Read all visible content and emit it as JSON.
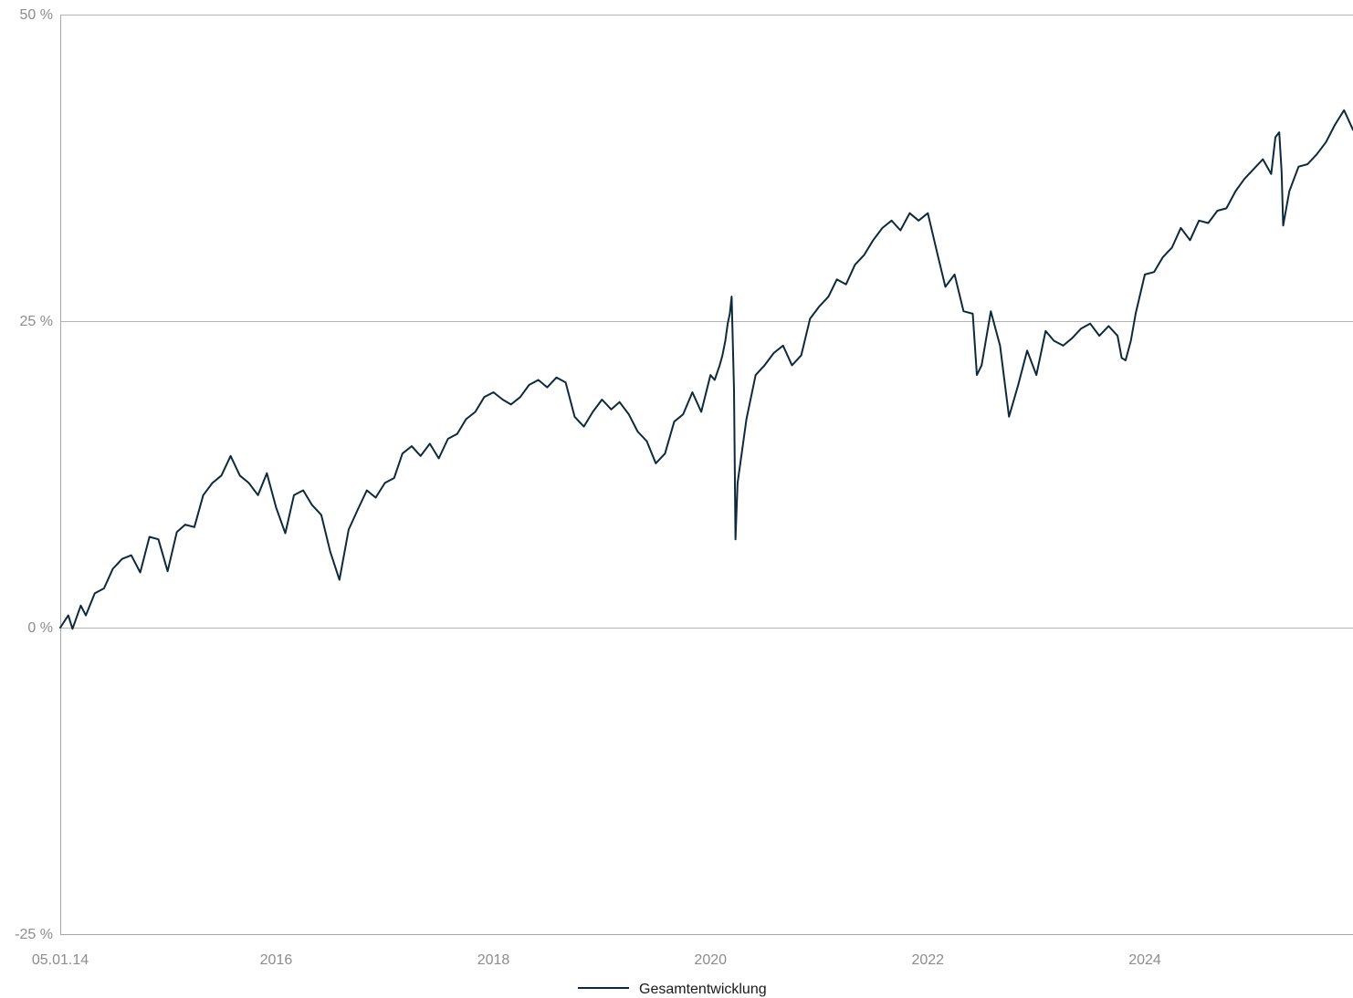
{
  "chart_data": {
    "type": "line",
    "title": "",
    "xlabel": "",
    "ylabel": "",
    "ylim": [
      -25,
      50
    ],
    "xlim": [
      "2014-01-05",
      "2025-12-01"
    ],
    "y_ticks": [
      {
        "value": 50,
        "label": "50 %"
      },
      {
        "value": 25,
        "label": "25 %"
      },
      {
        "value": 0,
        "label": "0 %"
      },
      {
        "value": -25,
        "label": "-25 %"
      }
    ],
    "x_ticks": [
      {
        "value": "2014-01-05",
        "label": "05.01.14"
      },
      {
        "value": "2016-01-01",
        "label": "2016"
      },
      {
        "value": "2018-01-01",
        "label": "2018"
      },
      {
        "value": "2020-01-01",
        "label": "2020"
      },
      {
        "value": "2022-01-01",
        "label": "2022"
      },
      {
        "value": "2024-01-01",
        "label": "2024"
      }
    ],
    "grid": true,
    "legend": {
      "position": "bottom-center"
    },
    "series": [
      {
        "name": "Gesamtentwicklung",
        "color": "#0d2a3c",
        "points": [
          [
            "2014-01-05",
            0.0
          ],
          [
            "2014-02-01",
            1.0
          ],
          [
            "2014-02-15",
            -0.1
          ],
          [
            "2014-03-15",
            1.8
          ],
          [
            "2014-04-01",
            1.0
          ],
          [
            "2014-05-01",
            2.8
          ],
          [
            "2014-06-01",
            3.2
          ],
          [
            "2014-07-01",
            4.8
          ],
          [
            "2014-08-01",
            5.6
          ],
          [
            "2014-09-01",
            5.9
          ],
          [
            "2014-10-01",
            4.5
          ],
          [
            "2014-11-01",
            7.4
          ],
          [
            "2014-12-01",
            7.2
          ],
          [
            "2015-01-01",
            4.6
          ],
          [
            "2015-02-01",
            7.8
          ],
          [
            "2015-03-01",
            8.4
          ],
          [
            "2015-04-01",
            8.2
          ],
          [
            "2015-05-01",
            10.8
          ],
          [
            "2015-06-01",
            11.8
          ],
          [
            "2015-07-01",
            12.4
          ],
          [
            "2015-08-01",
            14.0
          ],
          [
            "2015-09-01",
            12.4
          ],
          [
            "2015-10-01",
            11.8
          ],
          [
            "2015-11-01",
            10.8
          ],
          [
            "2015-12-01",
            12.6
          ],
          [
            "2016-01-01",
            9.8
          ],
          [
            "2016-02-01",
            7.7
          ],
          [
            "2016-03-01",
            10.8
          ],
          [
            "2016-04-01",
            11.2
          ],
          [
            "2016-05-01",
            10.0
          ],
          [
            "2016-06-01",
            9.2
          ],
          [
            "2016-07-01",
            6.2
          ],
          [
            "2016-08-01",
            3.9
          ],
          [
            "2016-09-01",
            8.0
          ],
          [
            "2016-10-01",
            9.6
          ],
          [
            "2016-11-01",
            11.2
          ],
          [
            "2016-12-01",
            10.6
          ],
          [
            "2017-01-01",
            11.8
          ],
          [
            "2017-02-01",
            12.2
          ],
          [
            "2017-03-01",
            14.2
          ],
          [
            "2017-04-01",
            14.8
          ],
          [
            "2017-05-01",
            14.0
          ],
          [
            "2017-06-01",
            15.0
          ],
          [
            "2017-07-01",
            13.8
          ],
          [
            "2017-08-01",
            15.4
          ],
          [
            "2017-09-01",
            15.8
          ],
          [
            "2017-10-01",
            17.0
          ],
          [
            "2017-11-01",
            17.6
          ],
          [
            "2017-12-01",
            18.8
          ],
          [
            "2018-01-01",
            19.2
          ],
          [
            "2018-02-01",
            18.6
          ],
          [
            "2018-03-01",
            18.2
          ],
          [
            "2018-04-01",
            18.8
          ],
          [
            "2018-05-01",
            19.8
          ],
          [
            "2018-06-01",
            20.2
          ],
          [
            "2018-07-01",
            19.6
          ],
          [
            "2018-08-01",
            20.4
          ],
          [
            "2018-09-01",
            20.0
          ],
          [
            "2018-10-01",
            17.2
          ],
          [
            "2018-11-01",
            16.4
          ],
          [
            "2018-12-01",
            17.6
          ],
          [
            "2019-01-01",
            18.6
          ],
          [
            "2019-02-01",
            17.8
          ],
          [
            "2019-03-01",
            18.4
          ],
          [
            "2019-04-01",
            17.4
          ],
          [
            "2019-05-01",
            16.0
          ],
          [
            "2019-06-01",
            15.2
          ],
          [
            "2019-07-01",
            13.4
          ],
          [
            "2019-08-01",
            14.2
          ],
          [
            "2019-09-01",
            16.8
          ],
          [
            "2019-10-01",
            17.4
          ],
          [
            "2019-11-01",
            19.2
          ],
          [
            "2019-12-01",
            17.6
          ],
          [
            "2020-01-01",
            20.6
          ],
          [
            "2020-01-15",
            20.2
          ],
          [
            "2020-02-01",
            21.4
          ],
          [
            "2020-02-10",
            22.2
          ],
          [
            "2020-02-20",
            23.4
          ],
          [
            "2020-02-28",
            24.8
          ],
          [
            "2020-03-06",
            25.6
          ],
          [
            "2020-03-12",
            27.0
          ],
          [
            "2020-03-20",
            19.4
          ],
          [
            "2020-03-25",
            7.2
          ],
          [
            "2020-04-01",
            11.8
          ],
          [
            "2020-04-15",
            14.2
          ],
          [
            "2020-05-01",
            17.0
          ],
          [
            "2020-06-01",
            20.6
          ],
          [
            "2020-07-01",
            21.4
          ],
          [
            "2020-08-01",
            22.4
          ],
          [
            "2020-09-01",
            23.0
          ],
          [
            "2020-10-01",
            21.4
          ],
          [
            "2020-11-01",
            22.2
          ],
          [
            "2020-12-01",
            25.2
          ],
          [
            "2021-01-01",
            26.2
          ],
          [
            "2021-02-01",
            27.0
          ],
          [
            "2021-03-01",
            28.4
          ],
          [
            "2021-04-01",
            28.0
          ],
          [
            "2021-05-01",
            29.6
          ],
          [
            "2021-06-01",
            30.4
          ],
          [
            "2021-07-01",
            31.6
          ],
          [
            "2021-08-01",
            32.6
          ],
          [
            "2021-09-01",
            33.2
          ],
          [
            "2021-10-01",
            32.4
          ],
          [
            "2021-11-01",
            33.8
          ],
          [
            "2021-12-01",
            33.2
          ],
          [
            "2022-01-01",
            33.8
          ],
          [
            "2022-02-01",
            30.6
          ],
          [
            "2022-03-01",
            27.8
          ],
          [
            "2022-04-01",
            28.8
          ],
          [
            "2022-05-01",
            25.8
          ],
          [
            "2022-06-01",
            25.6
          ],
          [
            "2022-06-15",
            20.6
          ],
          [
            "2022-07-01",
            21.4
          ],
          [
            "2022-08-01",
            25.8
          ],
          [
            "2022-09-01",
            23.0
          ],
          [
            "2022-10-01",
            17.2
          ],
          [
            "2022-11-01",
            19.8
          ],
          [
            "2022-12-01",
            22.6
          ],
          [
            "2023-01-01",
            20.6
          ],
          [
            "2023-02-01",
            24.2
          ],
          [
            "2023-03-01",
            23.4
          ],
          [
            "2023-04-01",
            23.0
          ],
          [
            "2023-05-01",
            23.6
          ],
          [
            "2023-06-01",
            24.4
          ],
          [
            "2023-07-01",
            24.8
          ],
          [
            "2023-08-01",
            23.8
          ],
          [
            "2023-09-01",
            24.6
          ],
          [
            "2023-10-01",
            23.8
          ],
          [
            "2023-10-15",
            22.0
          ],
          [
            "2023-10-28",
            21.8
          ],
          [
            "2023-11-15",
            23.4
          ],
          [
            "2023-12-01",
            25.6
          ],
          [
            "2024-01-01",
            28.8
          ],
          [
            "2024-02-01",
            29.0
          ],
          [
            "2024-03-01",
            30.2
          ],
          [
            "2024-04-01",
            31.0
          ],
          [
            "2024-05-01",
            32.6
          ],
          [
            "2024-06-01",
            31.6
          ],
          [
            "2024-07-01",
            33.2
          ],
          [
            "2024-08-01",
            33.0
          ],
          [
            "2024-09-01",
            34.0
          ],
          [
            "2024-10-01",
            34.2
          ],
          [
            "2024-11-01",
            35.6
          ],
          [
            "2024-12-01",
            36.6
          ],
          [
            "2025-01-01",
            37.4
          ],
          [
            "2025-02-01",
            38.2
          ],
          [
            "2025-03-01",
            37.0
          ],
          [
            "2025-03-15",
            40.0
          ],
          [
            "2025-03-28",
            40.4
          ],
          [
            "2025-04-05",
            37.2
          ],
          [
            "2025-04-10",
            32.8
          ],
          [
            "2025-05-01",
            35.6
          ],
          [
            "2025-06-01",
            37.6
          ],
          [
            "2025-07-01",
            37.8
          ],
          [
            "2025-08-01",
            38.6
          ],
          [
            "2025-09-01",
            39.6
          ],
          [
            "2025-10-01",
            41.0
          ],
          [
            "2025-11-01",
            42.2
          ],
          [
            "2025-12-01",
            40.6
          ]
        ]
      }
    ]
  }
}
